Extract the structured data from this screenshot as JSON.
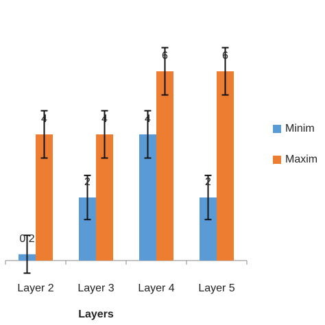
{
  "chart_data": {
    "type": "bar",
    "x_label": "Layers",
    "categories": [
      "Layer 2",
      "Layer 3",
      "Layer 4",
      "Layer 5"
    ],
    "series": [
      {
        "name": "Minim",
        "color": "#5b9bd5",
        "values": [
          0.2,
          2,
          4,
          2
        ],
        "errors": [
          0.6,
          0.7,
          0.75,
          0.7
        ]
      },
      {
        "name": "Maxim",
        "color": "#ed7d31",
        "values": [
          4,
          4,
          6,
          6
        ],
        "errors": [
          0.75,
          0.75,
          0.75,
          0.75
        ]
      }
    ],
    "ylim": [
      0,
      8
    ]
  }
}
